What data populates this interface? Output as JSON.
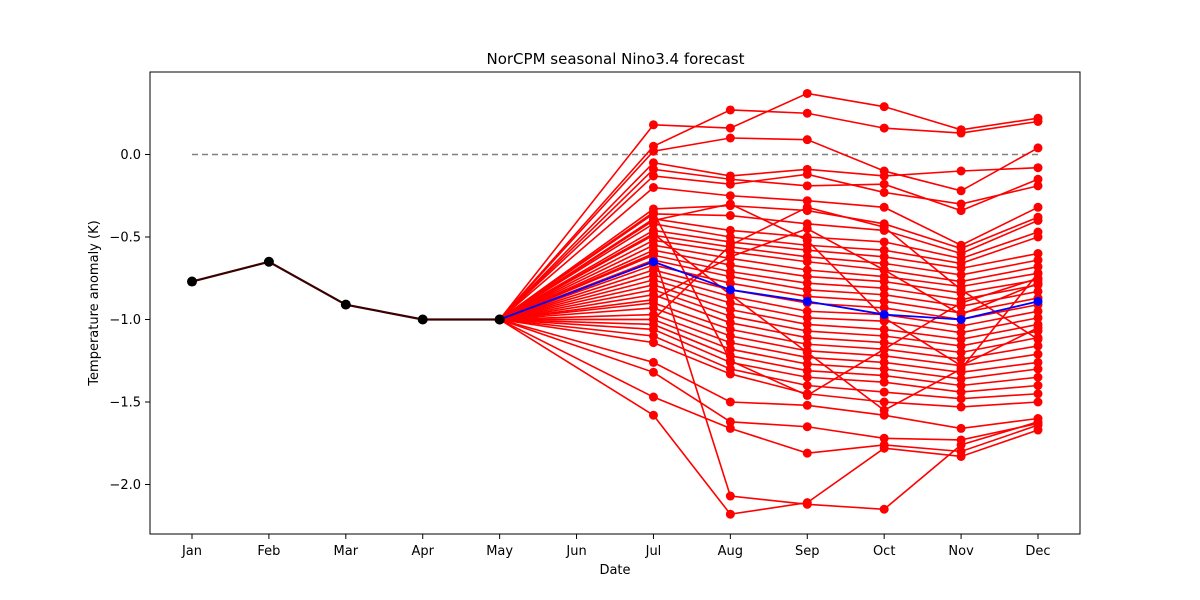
{
  "chart_data": {
    "type": "line",
    "title": "NorCPM seasonal Nino3.4 forecast",
    "xlabel": "Date",
    "ylabel": "Temperature anomaly (K)",
    "categories": [
      "Jan",
      "Feb",
      "Mar",
      "Apr",
      "May",
      "Jun",
      "Jul",
      "Aug",
      "Sep",
      "Oct",
      "Nov",
      "Dec"
    ],
    "yticks": [
      0.0,
      -0.5,
      -1.0,
      -1.5,
      -2.0
    ],
    "yticklabels": [
      "0.0",
      "−0.5",
      "−1.0",
      "−1.5",
      "−2.0"
    ],
    "ylim": [
      -2.3,
      0.5
    ],
    "grid": false,
    "colors": {
      "observed": "#000000",
      "members": "#ff0000",
      "mean": "#0000ff",
      "zero_line": "#808080"
    },
    "zero_line": 0.0,
    "observed": [
      -0.77,
      -0.65,
      -0.91,
      -1.0,
      -1.0
    ],
    "ensemble_mean": {
      "Jul": -0.65,
      "Aug": -0.82,
      "Sep": -0.89,
      "Oct": -0.97,
      "Nov": -1.0,
      "Dec": -0.89
    },
    "ensemble_members": [
      [
        0.18,
        0.16,
        0.37,
        0.29,
        0.15,
        0.22
      ],
      [
        0.05,
        0.27,
        0.25,
        0.16,
        0.13,
        0.2
      ],
      [
        0.02,
        0.1,
        0.09,
        -0.1,
        -0.22,
        0.04
      ],
      [
        -0.05,
        -0.13,
        -0.09,
        -0.13,
        -0.1,
        -0.08
      ],
      [
        -0.09,
        -0.15,
        -0.19,
        -0.18,
        -0.34,
        -0.15
      ],
      [
        -0.13,
        -0.18,
        -0.12,
        -0.23,
        -0.3,
        -0.19
      ],
      [
        -0.2,
        -0.25,
        -0.28,
        -0.32,
        -0.55,
        -0.32
      ],
      [
        -0.33,
        -0.31,
        -0.34,
        -0.42,
        -0.57,
        -0.38
      ],
      [
        -0.36,
        -0.37,
        -0.42,
        -0.46,
        -0.6,
        -0.4
      ],
      [
        -0.39,
        -0.46,
        -0.5,
        -0.53,
        -0.63,
        -0.47
      ],
      [
        -0.42,
        -0.5,
        -0.55,
        -0.58,
        -0.66,
        -0.5
      ],
      [
        -0.46,
        -0.53,
        -0.58,
        -0.62,
        -0.69,
        -0.6
      ],
      [
        -0.49,
        -0.56,
        -0.62,
        -0.66,
        -0.73,
        -0.64
      ],
      [
        -0.52,
        -0.59,
        -0.65,
        -0.7,
        -0.77,
        -0.68
      ],
      [
        -0.55,
        -0.63,
        -0.7,
        -0.74,
        -0.8,
        -0.72
      ],
      [
        -0.58,
        -0.67,
        -0.74,
        -0.77,
        -0.84,
        -0.76
      ],
      [
        -0.61,
        -0.71,
        -0.78,
        -0.81,
        -0.88,
        -0.79
      ],
      [
        -0.64,
        -0.74,
        -0.82,
        -0.85,
        -0.92,
        -0.83
      ],
      [
        -0.67,
        -0.78,
        -0.86,
        -0.89,
        -0.96,
        -0.87
      ],
      [
        -0.7,
        -0.82,
        -0.9,
        -0.93,
        -1.0,
        -0.91
      ],
      [
        -0.73,
        -0.86,
        -0.95,
        -0.97,
        -1.04,
        -0.95
      ],
      [
        -0.76,
        -0.9,
        -0.99,
        -1.01,
        -1.08,
        -0.99
      ],
      [
        -0.79,
        -0.94,
        -1.03,
        -1.06,
        -1.12,
        -1.03
      ],
      [
        -0.82,
        -0.98,
        -1.07,
        -1.1,
        -1.16,
        -1.07
      ],
      [
        -0.85,
        -1.02,
        -1.11,
        -1.14,
        -1.2,
        -1.11
      ],
      [
        -0.9,
        -1.06,
        -1.15,
        -1.18,
        -1.24,
        -1.16
      ],
      [
        -0.93,
        -1.1,
        -1.19,
        -1.22,
        -1.28,
        -1.21
      ],
      [
        -0.97,
        -1.14,
        -1.23,
        -1.26,
        -1.32,
        -1.26
      ],
      [
        -1.0,
        -1.18,
        -1.27,
        -1.3,
        -1.36,
        -1.3
      ],
      [
        -1.03,
        -1.22,
        -1.31,
        -1.34,
        -1.4,
        -1.35
      ],
      [
        -1.06,
        -1.26,
        -1.35,
        -1.38,
        -1.44,
        -1.4
      ],
      [
        -1.1,
        -1.3,
        -1.4,
        -1.44,
        -1.48,
        -1.45
      ],
      [
        -1.14,
        -1.33,
        -1.45,
        -1.5,
        -1.53,
        -1.5
      ],
      [
        -1.26,
        -1.5,
        -1.52,
        -1.58,
        -1.66,
        -1.6
      ],
      [
        -1.32,
        -1.62,
        -1.65,
        -1.72,
        -1.73,
        -1.63
      ],
      [
        -1.47,
        -1.66,
        -1.81,
        -1.76,
        -1.8,
        -1.64
      ],
      [
        -1.58,
        -2.18,
        -2.11,
        -1.78,
        -1.83,
        -1.67
      ],
      [
        -0.6,
        -2.07,
        -2.12,
        -2.15,
        -1.76,
        -1.62
      ],
      [
        -0.4,
        -0.3,
        -0.52,
        -0.99,
        -1.28,
        -1.05
      ],
      [
        -0.88,
        -0.62,
        -0.45,
        -0.7,
        -0.97,
        -0.78
      ],
      [
        -0.48,
        -0.85,
        -1.2,
        -1.55,
        -1.3,
        -0.72
      ],
      [
        -1.0,
        -0.55,
        -0.32,
        -0.44,
        -0.82,
        -1.12
      ],
      [
        -0.35,
        -1.25,
        -1.46,
        -1.18,
        -0.9,
        -0.75
      ]
    ]
  }
}
